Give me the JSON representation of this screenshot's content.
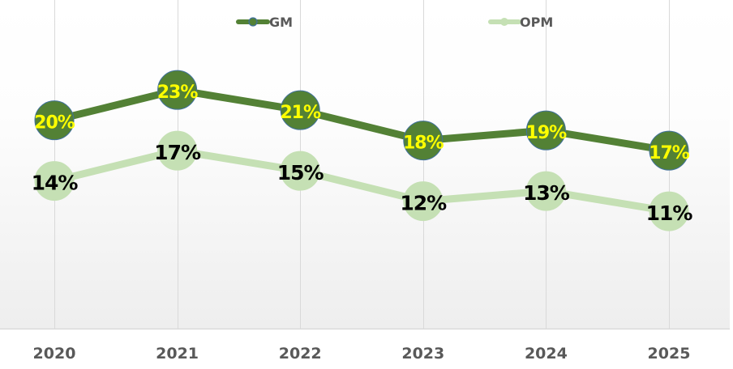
{
  "chart_data": {
    "type": "line",
    "title": "",
    "xlabel": "",
    "ylabel": "",
    "categories": [
      "2020",
      "2021",
      "2022",
      "2023",
      "2024",
      "2025"
    ],
    "ylim": [
      -0.6,
      31.9
    ],
    "grid": "vertical",
    "legend_position": "top",
    "series": [
      {
        "name": "GM",
        "values": [
          20,
          23,
          21,
          18,
          19,
          17
        ],
        "labels": [
          "20%",
          "23%",
          "21%",
          "18%",
          "19%",
          "17%"
        ],
        "color": "#538135",
        "marker_edge": "#41719c",
        "label_color": "#ffff00"
      },
      {
        "name": "OPM",
        "values": [
          14,
          17,
          15,
          12,
          13,
          11
        ],
        "labels": [
          "14%",
          "17%",
          "15%",
          "12%",
          "13%",
          "11%"
        ],
        "color": "#c5e0b4",
        "marker_edge": "#c5e0b4",
        "label_color": "#000000"
      }
    ]
  }
}
